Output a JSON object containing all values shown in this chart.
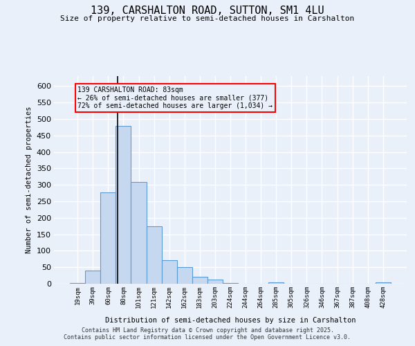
{
  "title": "139, CARSHALTON ROAD, SUTTON, SM1 4LU",
  "subtitle": "Size of property relative to semi-detached houses in Carshalton",
  "xlabel": "Distribution of semi-detached houses by size in Carshalton",
  "ylabel": "Number of semi-detached properties",
  "categories": [
    "19sqm",
    "39sqm",
    "60sqm",
    "80sqm",
    "101sqm",
    "121sqm",
    "142sqm",
    "162sqm",
    "183sqm",
    "203sqm",
    "224sqm",
    "244sqm",
    "264sqm",
    "285sqm",
    "305sqm",
    "326sqm",
    "346sqm",
    "367sqm",
    "387sqm",
    "408sqm",
    "428sqm"
  ],
  "values": [
    2,
    40,
    278,
    478,
    308,
    175,
    72,
    50,
    20,
    12,
    2,
    0,
    0,
    5,
    0,
    0,
    0,
    0,
    0,
    0,
    4
  ],
  "bar_color": "#c5d8f0",
  "bar_edge_color": "#5b9bd5",
  "ylim": [
    0,
    630
  ],
  "yticks": [
    0,
    50,
    100,
    150,
    200,
    250,
    300,
    350,
    400,
    450,
    500,
    550,
    600
  ],
  "annotation_text_line1": "139 CARSHALTON ROAD: 83sqm",
  "annotation_text_line2": "← 26% of semi-detached houses are smaller (377)",
  "annotation_text_line3": "72% of semi-detached houses are larger (1,034) →",
  "footer_line1": "Contains HM Land Registry data © Crown copyright and database right 2025.",
  "footer_line2": "Contains public sector information licensed under the Open Government Licence v3.0.",
  "bg_color": "#eaf0fa",
  "grid_color": "#ffffff",
  "vline_x_idx": 2.62
}
